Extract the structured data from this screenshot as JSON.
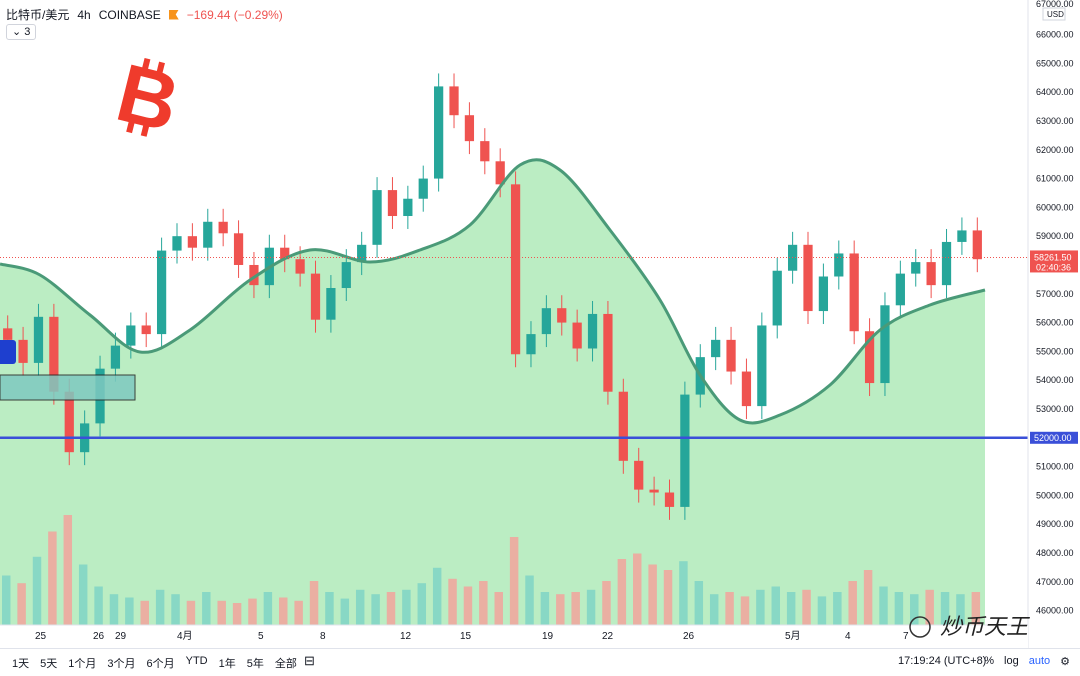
{
  "header": {
    "symbol": "比特币/美元",
    "interval": "4h",
    "exchange": "COINBASE",
    "change": "−169.44 (−0.29%)",
    "indicator_count": "3"
  },
  "price_axis": {
    "currency": "USD",
    "top_label": "67000.00",
    "current_price": "58261.50",
    "countdown": "02:40:36",
    "level_label": "52000.00"
  },
  "bottom_bar": {
    "timeframes": [
      "1天",
      "5天",
      "1个月",
      "3个月",
      "6个月",
      "YTD",
      "1年",
      "5年",
      "全部"
    ],
    "time": "17:19:24 (UTC+8)",
    "right_labels": [
      "%",
      "log",
      "auto"
    ]
  },
  "watermark": "炒币天王",
  "colors": {
    "up": "#26a69a",
    "down": "#ef5350",
    "curve": "#4a9a78",
    "fill": "#b7ecc0",
    "level": "#3a4fd8",
    "logo": "#ef3b2c"
  },
  "chart_data": {
    "type": "candlestick",
    "y_ticks": [
      46000,
      47000,
      48000,
      49000,
      50000,
      51000,
      52000,
      53000,
      54000,
      55000,
      56000,
      57000,
      58000,
      59000,
      60000,
      61000,
      62000,
      63000,
      64000,
      65000,
      66000
    ],
    "ylim": [
      45500,
      67200
    ],
    "x_labels": [
      "25",
      "26",
      "29",
      "4月",
      "5",
      "8",
      "12",
      "15",
      "19",
      "22",
      "26",
      "5月",
      "4",
      "7"
    ],
    "horizontal_level": 52000,
    "last_price": 58261.5,
    "closes": [
      55400,
      54600,
      56200,
      53600,
      51500,
      52500,
      54400,
      55200,
      55900,
      55600,
      58500,
      59000,
      58600,
      59500,
      59100,
      58000,
      57300,
      58600,
      58200,
      57700,
      56100,
      57200,
      58100,
      58700,
      60600,
      59700,
      60300,
      61000,
      64200,
      63200,
      62300,
      61600,
      60800,
      54900,
      55600,
      56500,
      56000,
      55100,
      56300,
      53600,
      51200,
      50200,
      50100,
      49600,
      53500,
      54800,
      55400,
      54300,
      53100,
      55900,
      57800,
      58700,
      56400,
      57600,
      58400,
      55700,
      53900,
      56600,
      57700,
      58100,
      57300,
      58800,
      59200,
      58200
    ],
    "volumes": [
      0.45,
      0.38,
      0.62,
      0.85,
      1.0,
      0.55,
      0.35,
      0.28,
      0.25,
      0.22,
      0.32,
      0.28,
      0.22,
      0.3,
      0.22,
      0.2,
      0.24,
      0.3,
      0.25,
      0.22,
      0.4,
      0.3,
      0.24,
      0.32,
      0.28,
      0.3,
      0.32,
      0.38,
      0.52,
      0.42,
      0.35,
      0.4,
      0.3,
      0.8,
      0.45,
      0.3,
      0.28,
      0.3,
      0.32,
      0.4,
      0.6,
      0.65,
      0.55,
      0.5,
      0.58,
      0.4,
      0.28,
      0.3,
      0.26,
      0.32,
      0.35,
      0.3,
      0.32,
      0.26,
      0.3,
      0.4,
      0.5,
      0.35,
      0.3,
      0.28,
      0.32,
      0.3,
      0.28,
      0.3
    ]
  }
}
